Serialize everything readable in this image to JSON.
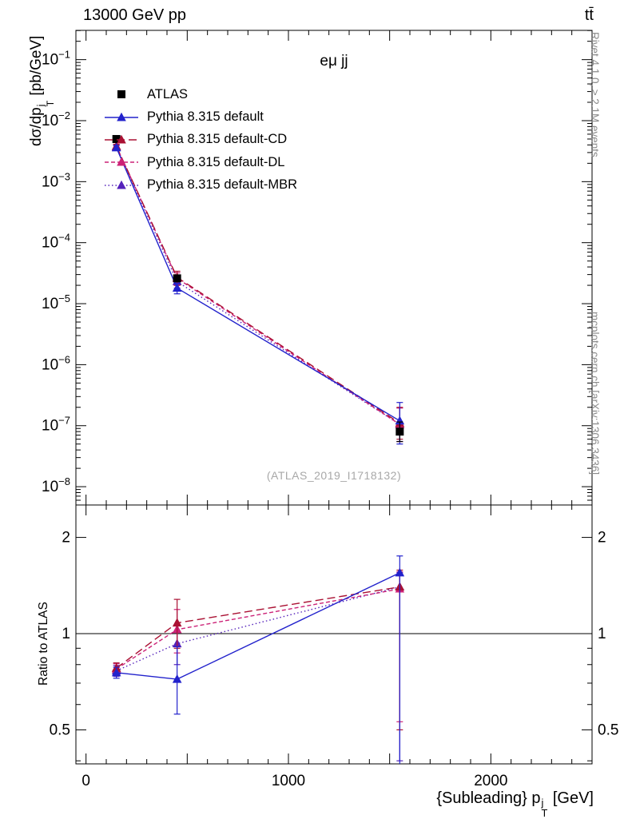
{
  "header": {
    "left": "13000 GeV pp",
    "right": "tt̄"
  },
  "side_notes": {
    "top_right": "Rivet 4.1.0, ≥ 2.1M events",
    "bottom_right": "mcplots.cern.ch [arXiv:1306.3436]"
  },
  "watermark": "(ATLAS_2019_I1718132)",
  "labels": {
    "title": "eμ jj",
    "ylabel": {
      "pre": "dσ/dp",
      "sup": "j",
      "sub": "T",
      "post": " [pb/GeV]"
    },
    "ratio_ylabel": "Ratio to ATLAS",
    "xlabel": {
      "pre": "{Subleading} p",
      "sup": "j",
      "sub": "T",
      "post": " [GeV]"
    }
  },
  "chart_data": {
    "type": "line",
    "title": "eμ jj",
    "xlabel": "{Subleading} p_T^j [GeV]",
    "ylabel": "dσ/dp_T^j [pb/GeV]",
    "ratio_ylabel": "Ratio to ATLAS",
    "legend_position": "top-left-inside",
    "grid": false,
    "x_axis": {
      "range": [
        -50,
        2500
      ],
      "minor_step": 100,
      "major_step": 500,
      "labeled_ticks": [
        0,
        1000,
        2000
      ]
    },
    "y_axis_main": {
      "scale": "log",
      "log_range": [
        -8.3,
        -0.52
      ],
      "decade_labels": [
        -1,
        -2,
        -3,
        -4,
        -5,
        -6,
        -7,
        -8
      ]
    },
    "y_axis_ratio": {
      "scale": "log",
      "log_range": [
        -0.4075,
        0.4025
      ],
      "major_ticks": [
        0.5,
        1,
        2
      ],
      "minor_ticks": [
        0.4,
        0.6,
        0.7,
        0.8,
        0.9
      ],
      "reference_line": 1
    },
    "x": [
      150,
      450,
      1550
    ],
    "series": [
      {
        "name": "ATLAS",
        "color": "#000000",
        "marker": "square",
        "line": "none",
        "y": [
          0.005,
          2.6e-05,
          8e-08
        ],
        "y_err": [
          [
            0.0006,
            0.0006
          ],
          [
            2.5e-06,
            2.5e-06
          ],
          [
            2.5e-08,
            3.5e-08
          ]
        ],
        "ratio": null
      },
      {
        "name": "Pythia 8.315 default",
        "color": "#2222cc",
        "marker": "triangle",
        "line": "solid",
        "y": [
          0.0036,
          1.8e-05,
          1.2e-07
        ],
        "y_err": [
          [
            0.0003,
            0.0003
          ],
          [
            3.5e-06,
            3.5e-06
          ],
          [
            7e-08,
            1.2e-07
          ]
        ],
        "ratio": [
          0.755,
          0.72,
          1.55
        ],
        "ratio_err": [
          [
            0.03,
            0.03
          ],
          [
            0.16,
            0.19
          ],
          [
            1.2,
            0.2
          ]
        ]
      },
      {
        "name": "Pythia 8.315 default-CD",
        "color": "#aa1133",
        "marker": "triangle",
        "line": "dash-long",
        "y": [
          0.0038,
          2.7e-05,
          1.1e-07
        ],
        "y_err": [
          [
            0.0003,
            0.0003
          ],
          [
            7e-06,
            7e-06
          ],
          [
            5e-08,
            9e-08
          ]
        ],
        "ratio": [
          0.78,
          1.08,
          1.4
        ],
        "ratio_err": [
          [
            0.03,
            0.03
          ],
          [
            0.18,
            0.2
          ],
          [
            0.9,
            0.18
          ]
        ]
      },
      {
        "name": "Pythia 8.315 default-DL",
        "color": "#cc2277",
        "marker": "triangle",
        "line": "dash",
        "y": [
          0.0038,
          2.6e-05,
          1.05e-07
        ],
        "y_err": [
          [
            0.0003,
            0.0003
          ],
          [
            6e-06,
            6e-06
          ],
          [
            5e-08,
            9e-08
          ]
        ],
        "ratio": [
          0.775,
          1.03,
          1.38
        ],
        "ratio_err": [
          [
            0.03,
            0.03
          ],
          [
            0.16,
            0.16
          ],
          [
            0.85,
            0.18
          ]
        ]
      },
      {
        "name": "Pythia 8.315 default-MBR",
        "color": "#5522bb",
        "marker": "triangle",
        "line": "dot",
        "y": [
          0.0037,
          2.3e-05,
          1.05e-07
        ],
        "y_err": [
          [
            0.0003,
            0.0003
          ],
          [
            5e-06,
            5e-06
          ],
          [
            5e-08,
            9e-08
          ]
        ],
        "ratio": [
          0.765,
          0.93,
          1.4
        ],
        "ratio_err": [
          [
            0.03,
            0.03
          ],
          [
            0.13,
            0.13
          ],
          [
            1.0,
            0.15
          ]
        ]
      }
    ]
  }
}
